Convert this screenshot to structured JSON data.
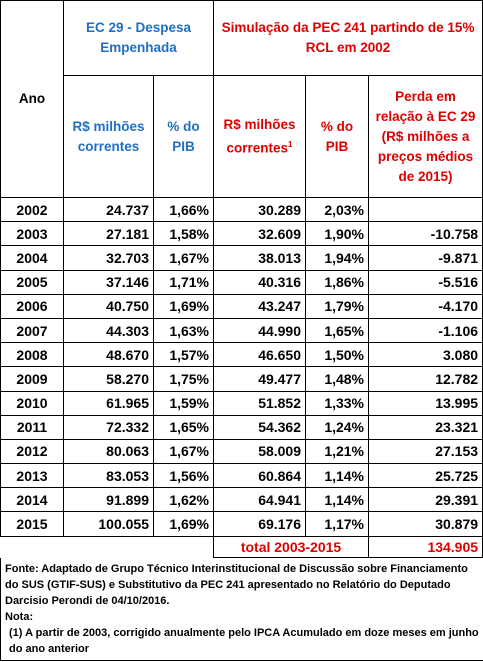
{
  "table": {
    "header": {
      "year": "Ano",
      "group_ec29": "EC 29 - Despesa Empenhada",
      "group_pec241": "Simulação da PEC 241 partindo de 15% RCL em 2002",
      "ec29_value": "R$ milhões correntes",
      "ec29_pib": "% do PIB",
      "pec_value": "R$ milhões correntes",
      "pec_value_note_marker": "1",
      "pec_pib": "% do PIB",
      "loss": "Perda em relação à EC 29 (R$ milhões a preços médios de 2015)"
    },
    "rows": [
      [
        "2002",
        "24.737",
        "1,66%",
        "30.289",
        "2,03%",
        null
      ],
      [
        "2003",
        "27.181",
        "1,58%",
        "32.609",
        "1,90%",
        "-10.758"
      ],
      [
        "2004",
        "32.703",
        "1,67%",
        "38.013",
        "1,94%",
        "-9.871"
      ],
      [
        "2005",
        "37.146",
        "1,71%",
        "40.316",
        "1,86%",
        "-5.516"
      ],
      [
        "2006",
        "40.750",
        "1,69%",
        "43.247",
        "1,79%",
        "-4.170"
      ],
      [
        "2007",
        "44.303",
        "1,63%",
        "44.990",
        "1,65%",
        "-1.106"
      ],
      [
        "2008",
        "48.670",
        "1,57%",
        "46.650",
        "1,50%",
        "3.080"
      ],
      [
        "2009",
        "58.270",
        "1,75%",
        "49.477",
        "1,48%",
        "12.782"
      ],
      [
        "2010",
        "61.965",
        "1,59%",
        "51.852",
        "1,33%",
        "13.995"
      ],
      [
        "2011",
        "72.332",
        "1,65%",
        "54.362",
        "1,24%",
        "23.321"
      ],
      [
        "2012",
        "80.063",
        "1,67%",
        "58.009",
        "1,21%",
        "27.153"
      ],
      [
        "2013",
        "83.053",
        "1,56%",
        "60.864",
        "1,14%",
        "25.725"
      ],
      [
        "2014",
        "91.899",
        "1,62%",
        "64.941",
        "1,14%",
        "29.391"
      ],
      [
        "2015",
        "100.055",
        "1,69%",
        "69.176",
        "1,17%",
        "30.879"
      ]
    ],
    "total": {
      "label": "total 2003-2015",
      "value": "134.905"
    }
  },
  "footer": {
    "source": "Fonte: Adaptado de Grupo Técnico Interinstitucional de Discussão sobre Financiamento do SUS (GTIF-SUS) e Substitutivo da PEC 241 apresentado no Relatório do Deputado Darcisio Perondi de 04/10/2016.",
    "note_title": "Nota:",
    "note_1": "(1) A partir de 2003, corrigido anualmente pelo IPCA Acumulado em doze meses em junho do ano anterior"
  }
}
